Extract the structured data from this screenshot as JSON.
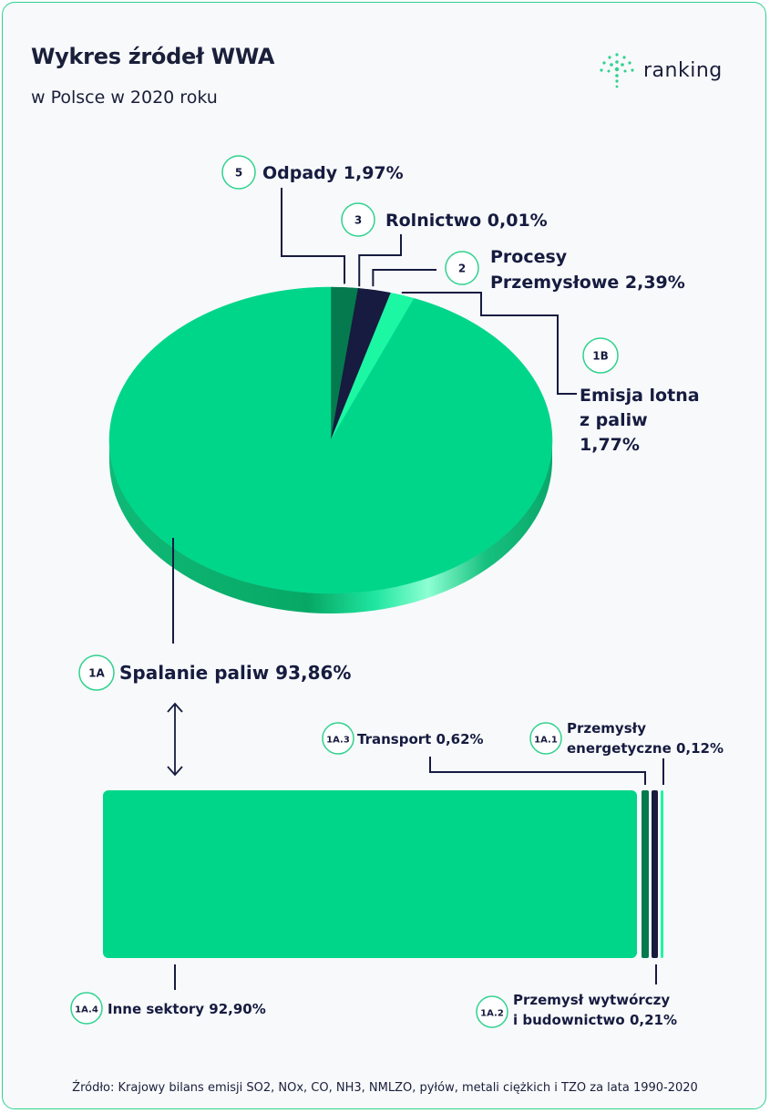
{
  "header": {
    "title": "Wykres źródeł WWA",
    "subtitle": "w Polsce w 2020 roku",
    "brand": "ranking"
  },
  "colors": {
    "main_green": "#00d68a",
    "dark_green": "#047a4e",
    "navy": "#161b3f",
    "light_green": "#1cf7a4",
    "side_green": "#06b571"
  },
  "chart_data": [
    {
      "type": "pie",
      "slices": [
        {
          "code": "1A",
          "label_lines": [
            "Spalanie paliw 93,86%"
          ],
          "value": 93.86,
          "color": "#00d68a"
        },
        {
          "code": "1B",
          "label_lines": [
            "Emisja lotna",
            "z paliw",
            "1,77%"
          ],
          "value": 1.77,
          "color": "#1cf7a4"
        },
        {
          "code": "2",
          "label_lines": [
            "Procesy",
            "Przemysłowe 2,39%"
          ],
          "value": 2.39,
          "color": "#161b3f"
        },
        {
          "code": "3",
          "label_lines": [
            "Rolnictwo 0,01%"
          ],
          "value": 0.01,
          "color": "#047a4e"
        },
        {
          "code": "5",
          "label_lines": [
            "Odpady 1,97%"
          ],
          "value": 1.97,
          "color": "#047a4e"
        }
      ]
    },
    {
      "type": "bar",
      "orientation": "horizontal-stacked",
      "segments": [
        {
          "code": "1A.4",
          "label_lines": [
            "Inne sektory 92,90%"
          ],
          "value": 92.9,
          "color": "#00d68a"
        },
        {
          "code": "1A.3",
          "label_lines": [
            "Transport 0,62%"
          ],
          "value": 0.62,
          "color": "#047a4e"
        },
        {
          "code": "1A.2",
          "label_lines": [
            "Przemysł wytwórczy",
            "i budownictwo 0,21%"
          ],
          "value": 0.21,
          "color": "#161b3f"
        },
        {
          "code": "1A.1",
          "label_lines": [
            "Przemysły",
            "energetyczne 0,12%"
          ],
          "value": 0.12,
          "color": "#1cf7a4"
        }
      ]
    }
  ],
  "source": "Źródło: Krajowy bilans emisji SO2, NOx, CO, NH3, NMLZO, pyłów, metali ciężkich i TZO za lata 1990-2020"
}
